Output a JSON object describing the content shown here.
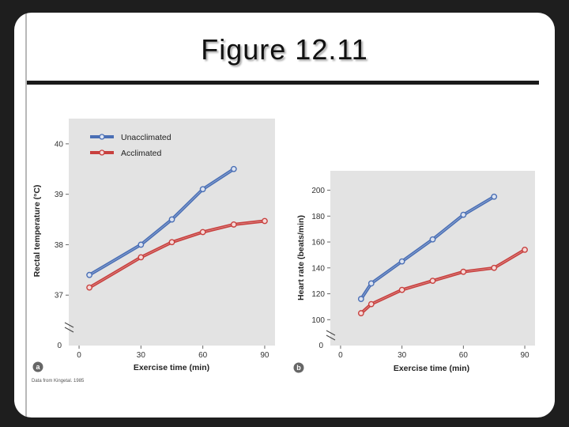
{
  "slide": {
    "title": "Figure 12.11",
    "source_note": "Data from Kingetal. 1985"
  },
  "colors": {
    "unacclimated": "#4a6fb5",
    "acclimated": "#c8403e",
    "plot_background": "#e3e3e3"
  },
  "chart_data": [
    {
      "type": "line",
      "panel": "a",
      "title": "",
      "xlabel": "Exercise time (min)",
      "ylabel": "Rectal temperature (°C)",
      "xlim": [
        -5,
        95
      ],
      "ylim": [
        36.0,
        40.5
      ],
      "axis_break": true,
      "zero_label": "0",
      "xticks": [
        0,
        30,
        60,
        90
      ],
      "yticks": [
        37,
        38,
        39,
        40
      ],
      "grid": false,
      "legend": "top-left",
      "series": [
        {
          "name": "Unacclimated",
          "color_key": "unacclimated",
          "x": [
            5,
            30,
            45,
            60,
            75
          ],
          "y": [
            37.4,
            38.0,
            38.5,
            39.1,
            39.5
          ]
        },
        {
          "name": "Acclimated",
          "color_key": "acclimated",
          "x": [
            5,
            30,
            45,
            60,
            75,
            90
          ],
          "y": [
            37.15,
            37.75,
            38.05,
            38.25,
            38.4,
            38.47
          ]
        }
      ]
    },
    {
      "type": "line",
      "panel": "b",
      "title": "",
      "xlabel": "Exercise time (min)",
      "ylabel": "Heart rate (beats/min)",
      "xlim": [
        -5,
        95
      ],
      "ylim": [
        80,
        215
      ],
      "axis_break": true,
      "zero_label": "0",
      "xticks": [
        0,
        30,
        60,
        90
      ],
      "yticks": [
        100,
        120,
        140,
        160,
        180,
        200
      ],
      "grid": false,
      "legend": "",
      "series": [
        {
          "name": "Unacclimated",
          "color_key": "unacclimated",
          "x": [
            10,
            15,
            30,
            45,
            60,
            75
          ],
          "y": [
            116,
            128,
            145,
            162,
            181,
            195
          ]
        },
        {
          "name": "Acclimated",
          "color_key": "acclimated",
          "x": [
            10,
            15,
            30,
            45,
            60,
            75,
            90
          ],
          "y": [
            105,
            112,
            123,
            130,
            137,
            140,
            154
          ]
        }
      ]
    }
  ]
}
